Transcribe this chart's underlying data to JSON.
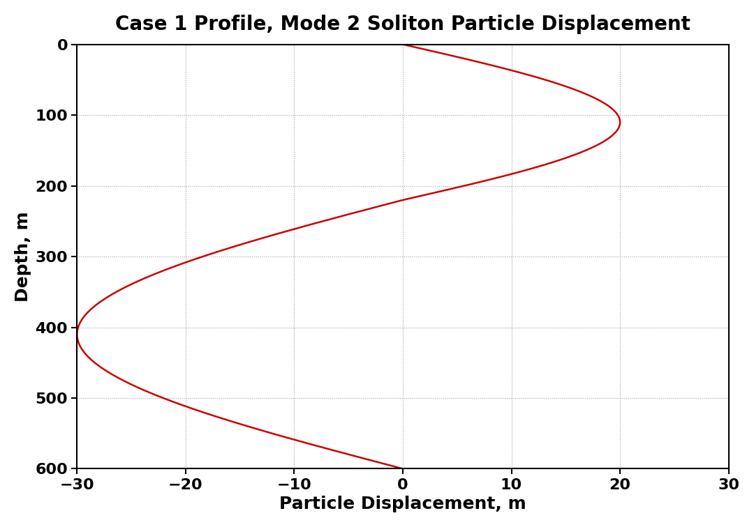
{
  "title": "Case 1 Profile, Mode 2 Soliton Particle Displacement",
  "xlabel": "Particle Displacement, m",
  "ylabel": "Depth, m",
  "xlim": [
    -30,
    30
  ],
  "ylim": [
    0,
    600
  ],
  "xticks": [
    -30,
    -20,
    -10,
    0,
    10,
    20,
    30
  ],
  "yticks": [
    0,
    100,
    200,
    300,
    400,
    500,
    600
  ],
  "line_color": "#cc0000",
  "line_width": 1.8,
  "grid_color": "#888888",
  "grid_style": "dotted",
  "background_color": "#ffffff",
  "title_fontsize": 20,
  "label_fontsize": 18,
  "tick_fontsize": 16,
  "font_weight": "bold",
  "figsize": [
    10.8,
    7.56
  ],
  "dpi": 100,
  "zero_crossing": 220.0,
  "upper_amplitude": 20.0,
  "lower_amplitude": -30.0,
  "upper_peak_depth": 75.0,
  "lower_peak_depth": 350.0,
  "total_depth": 600.0
}
